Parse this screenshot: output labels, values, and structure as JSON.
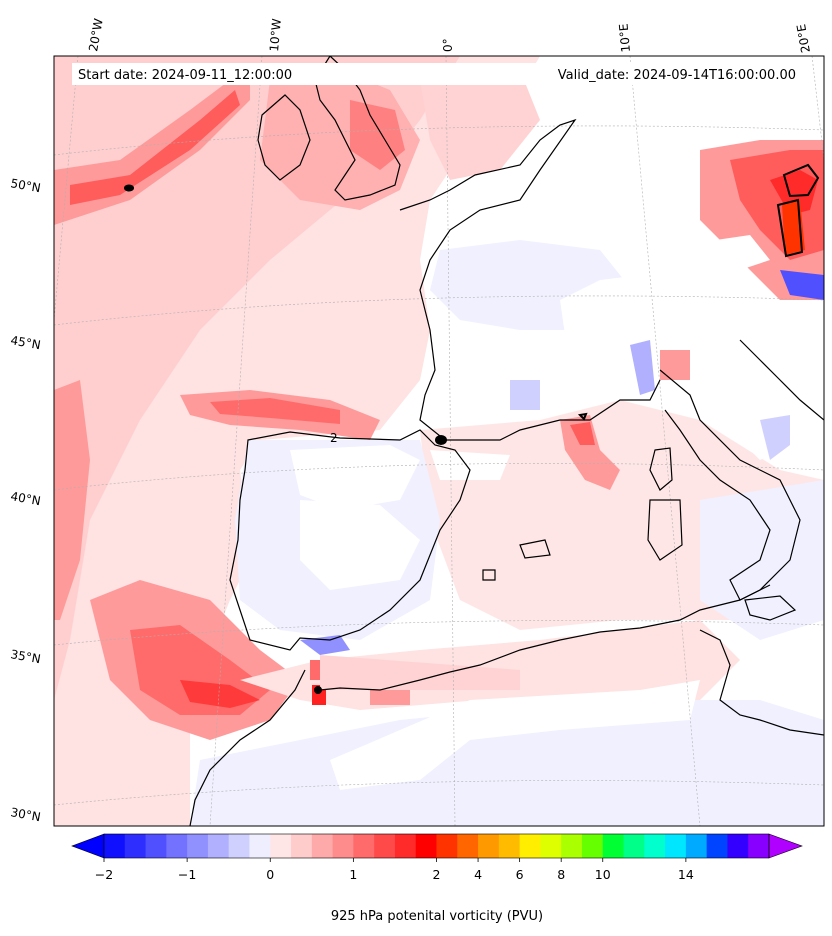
{
  "header": {
    "start_label": "Start date: 2024-09-11_12:00:00",
    "valid_label": "Valid_date: 2024-09-14T16:00:00.00"
  },
  "map": {
    "lon_labels": [
      "20°W",
      "10°W",
      "0°",
      "10°E",
      "20°E"
    ],
    "lat_labels": [
      "50°N",
      "45°N",
      "40°N",
      "35°N",
      "30°N"
    ],
    "contour_label": "2"
  },
  "colorbar": {
    "title": "925 hPa potenital vorticity (PVU)",
    "tick_labels": [
      "−2",
      "−1",
      "0",
      "1",
      "2",
      "4",
      "6",
      "8",
      "10",
      "14"
    ],
    "colors": [
      "#1010ff",
      "#2e2eff",
      "#5050ff",
      "#7272ff",
      "#9090ff",
      "#b0b0ff",
      "#d0d0ff",
      "#eeeeff",
      "#ffe6e6",
      "#ffcccc",
      "#ffaaaa",
      "#ff8c8c",
      "#ff6a6a",
      "#ff4a4a",
      "#ff2a2a",
      "#ff0000",
      "#ff3300",
      "#ff6600",
      "#ff9900",
      "#ffbb00",
      "#ffee00",
      "#ddff00",
      "#aaff00",
      "#66ff00",
      "#00ff33",
      "#00ff88",
      "#00ffcc",
      "#00e6ff",
      "#00aaff",
      "#0044ff",
      "#3300ff",
      "#8800ff"
    ],
    "extend_low_color": "#0000ff",
    "extend_high_color": "#b000ff"
  }
}
